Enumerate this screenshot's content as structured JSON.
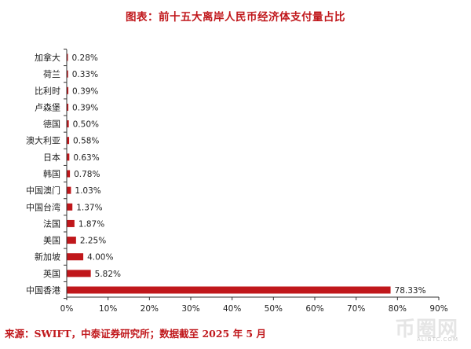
{
  "chart_data": {
    "type": "bar",
    "orientation": "horizontal",
    "title": "图表：前十五大离岸人民币经济体支付量占比",
    "categories": [
      "加拿大",
      "荷兰",
      "比利时",
      "卢森堡",
      "德国",
      "澳大利亚",
      "日本",
      "韩国",
      "中国澳门",
      "中国台湾",
      "法国",
      "美国",
      "新加坡",
      "英国",
      "中国香港"
    ],
    "values": [
      0.28,
      0.33,
      0.39,
      0.39,
      0.5,
      0.58,
      0.63,
      0.78,
      1.03,
      1.37,
      1.87,
      2.25,
      4.0,
      5.82,
      78.33
    ],
    "value_labels": [
      "0.28%",
      "0.33%",
      "0.39%",
      "0.39%",
      "0.50%",
      "0.58%",
      "0.63%",
      "0.78%",
      "1.03%",
      "1.37%",
      "1.87%",
      "2.25%",
      "4.00%",
      "5.82%",
      "78.33%"
    ],
    "xlim": [
      0,
      90
    ],
    "x_ticks": [
      "0%",
      "10%",
      "20%",
      "30%",
      "40%",
      "50%",
      "60%",
      "70%",
      "80%",
      "90%"
    ],
    "xlabel": "",
    "ylabel": "",
    "grid": false,
    "bar_color": "#c0171b"
  },
  "source": "来源：SWIFT，中泰证券研究所；数据截至 2025 年 5 月",
  "watermark": {
    "text": "币圈网",
    "sub": "ALIBTC.COM"
  },
  "colors": {
    "accent": "#c0171b",
    "text": "#222222",
    "axis": "#333333"
  }
}
